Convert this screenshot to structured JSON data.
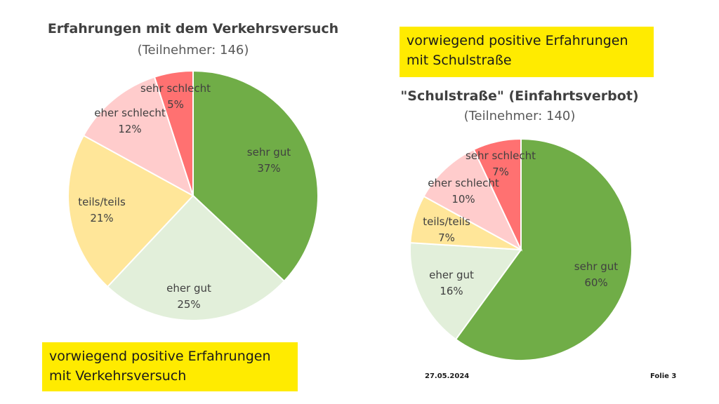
{
  "slide": {
    "date": "27.05.2024",
    "slide_number": "Folie 3"
  },
  "callouts": {
    "left": [
      "vorwiegend positive Erfahrungen",
      "mit Verkehrsversuch"
    ],
    "right": [
      "vorwiegend positive Erfahrungen",
      "mit Schulstraße"
    ]
  },
  "chart_data": [
    {
      "type": "pie",
      "title": "Erfahrungen mit dem Verkehrsversuch",
      "subtitle": "(Teilnehmer: 146)",
      "slices": [
        {
          "label": "sehr gut",
          "value": 37,
          "display": "37%",
          "color": "#70ad47"
        },
        {
          "label": "eher gut",
          "value": 25,
          "display": "25%",
          "color": "#e2efda"
        },
        {
          "label": "teils/teils",
          "value": 21,
          "display": "21%",
          "color": "#ffe699"
        },
        {
          "label": "eher schlecht",
          "value": 12,
          "display": "12%",
          "color": "#ffcccc"
        },
        {
          "label": "sehr schlecht",
          "value": 5,
          "display": "5%",
          "color": "#ff7171"
        }
      ]
    },
    {
      "type": "pie",
      "title": "\"Schulstraße\" (Einfahrtsverbot)",
      "subtitle": "(Teilnehmer: 140)",
      "slices": [
        {
          "label": "sehr gut",
          "value": 60,
          "display": "60%",
          "color": "#70ad47"
        },
        {
          "label": "eher gut",
          "value": 16,
          "display": "16%",
          "color": "#e2efda"
        },
        {
          "label": "teils/teils",
          "value": 7,
          "display": "7%",
          "color": "#ffe699"
        },
        {
          "label": "eher schlecht",
          "value": 10,
          "display": "10%",
          "color": "#ffcccc"
        },
        {
          "label": "sehr schlecht",
          "value": 7,
          "display": "7%",
          "color": "#ff7171"
        }
      ]
    }
  ]
}
